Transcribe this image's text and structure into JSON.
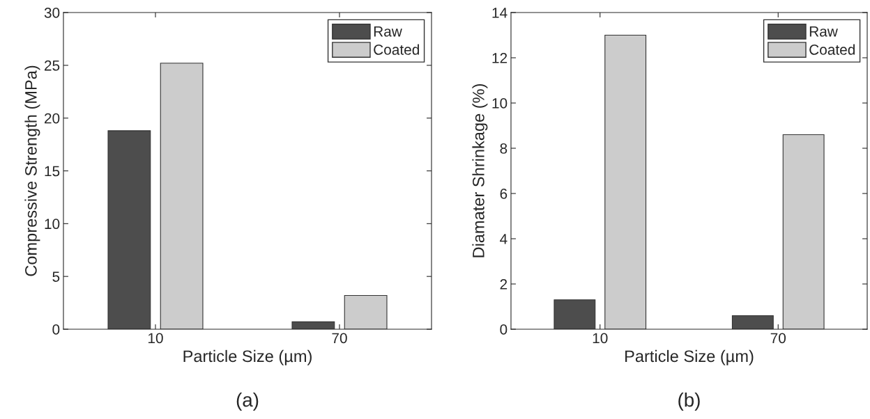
{
  "chart_data": [
    {
      "type": "bar",
      "xlabel": "Particle Size (µm)",
      "ylabel": "Compressive Strength (MPa)",
      "categories": [
        "10",
        "70"
      ],
      "series": [
        {
          "name": "Raw",
          "color": "#4d4d4d",
          "values": [
            18.8,
            0.7
          ]
        },
        {
          "name": "Coated",
          "color": "#cccccc",
          "values": [
            25.2,
            3.2
          ]
        }
      ],
      "ylim": [
        0,
        30
      ],
      "yticks": [
        0,
        5,
        10,
        15,
        20,
        25,
        30
      ],
      "legend": "top right",
      "grid": false,
      "annotations": [
        "(a)"
      ]
    },
    {
      "type": "bar",
      "xlabel": "Particle Size (µm)",
      "ylabel": "Diamater Shrinkage (%)",
      "categories": [
        "10",
        "70"
      ],
      "series": [
        {
          "name": "Raw",
          "color": "#4d4d4d",
          "values": [
            1.3,
            0.6
          ]
        },
        {
          "name": "Coated",
          "color": "#cccccc",
          "values": [
            13.0,
            8.6
          ]
        }
      ],
      "ylim": [
        0,
        14
      ],
      "yticks": [
        0,
        2,
        4,
        6,
        8,
        10,
        12,
        14
      ],
      "legend": "top right",
      "grid": false,
      "annotations": [
        "(b)"
      ]
    }
  ]
}
